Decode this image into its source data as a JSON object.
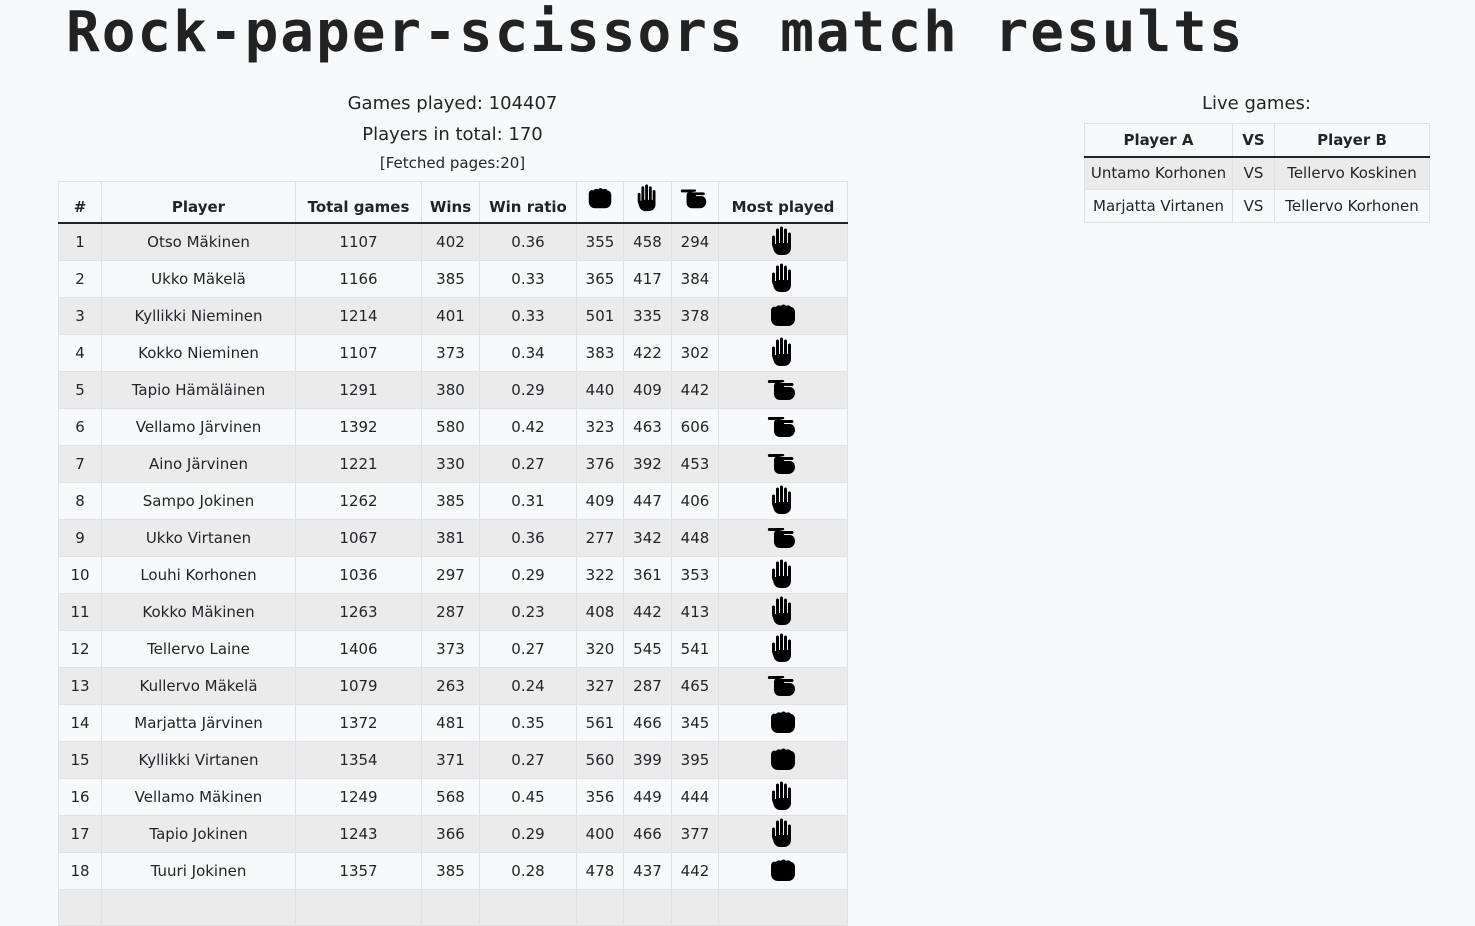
{
  "page": {
    "title": "Rock-paper-scissors match results"
  },
  "stats": {
    "games_played": "Games played: 104407",
    "players_total": "Players in total: 170",
    "fetched_pages": "[Fetched pages:20]"
  },
  "results_table": {
    "headers": {
      "rank": "#",
      "player": "Player",
      "total_games": "Total games",
      "wins": "Wins",
      "win_ratio": "Win ratio",
      "rock_icon": "rock-icon",
      "paper_icon": "paper-icon",
      "scissors_icon": "scissors-icon",
      "most_played": "Most played"
    },
    "rows": [
      {
        "rank": "1",
        "player": "Otso Mäkinen",
        "total": "1107",
        "wins": "402",
        "ratio": "0.36",
        "rock": "355",
        "paper": "458",
        "scissors": "294",
        "most": "paper"
      },
      {
        "rank": "2",
        "player": "Ukko Mäkelä",
        "total": "1166",
        "wins": "385",
        "ratio": "0.33",
        "rock": "365",
        "paper": "417",
        "scissors": "384",
        "most": "paper"
      },
      {
        "rank": "3",
        "player": "Kyllikki Nieminen",
        "total": "1214",
        "wins": "401",
        "ratio": "0.33",
        "rock": "501",
        "paper": "335",
        "scissors": "378",
        "most": "rock"
      },
      {
        "rank": "4",
        "player": "Kokko Nieminen",
        "total": "1107",
        "wins": "373",
        "ratio": "0.34",
        "rock": "383",
        "paper": "422",
        "scissors": "302",
        "most": "paper"
      },
      {
        "rank": "5",
        "player": "Tapio Hämäläinen",
        "total": "1291",
        "wins": "380",
        "ratio": "0.29",
        "rock": "440",
        "paper": "409",
        "scissors": "442",
        "most": "scissors"
      },
      {
        "rank": "6",
        "player": "Vellamo Järvinen",
        "total": "1392",
        "wins": "580",
        "ratio": "0.42",
        "rock": "323",
        "paper": "463",
        "scissors": "606",
        "most": "scissors"
      },
      {
        "rank": "7",
        "player": "Aino Järvinen",
        "total": "1221",
        "wins": "330",
        "ratio": "0.27",
        "rock": "376",
        "paper": "392",
        "scissors": "453",
        "most": "scissors"
      },
      {
        "rank": "8",
        "player": "Sampo Jokinen",
        "total": "1262",
        "wins": "385",
        "ratio": "0.31",
        "rock": "409",
        "paper": "447",
        "scissors": "406",
        "most": "paper"
      },
      {
        "rank": "9",
        "player": "Ukko Virtanen",
        "total": "1067",
        "wins": "381",
        "ratio": "0.36",
        "rock": "277",
        "paper": "342",
        "scissors": "448",
        "most": "scissors"
      },
      {
        "rank": "10",
        "player": "Louhi Korhonen",
        "total": "1036",
        "wins": "297",
        "ratio": "0.29",
        "rock": "322",
        "paper": "361",
        "scissors": "353",
        "most": "paper"
      },
      {
        "rank": "11",
        "player": "Kokko Mäkinen",
        "total": "1263",
        "wins": "287",
        "ratio": "0.23",
        "rock": "408",
        "paper": "442",
        "scissors": "413",
        "most": "paper"
      },
      {
        "rank": "12",
        "player": "Tellervo Laine",
        "total": "1406",
        "wins": "373",
        "ratio": "0.27",
        "rock": "320",
        "paper": "545",
        "scissors": "541",
        "most": "paper"
      },
      {
        "rank": "13",
        "player": "Kullervo Mäkelä",
        "total": "1079",
        "wins": "263",
        "ratio": "0.24",
        "rock": "327",
        "paper": "287",
        "scissors": "465",
        "most": "scissors"
      },
      {
        "rank": "14",
        "player": "Marjatta Järvinen",
        "total": "1372",
        "wins": "481",
        "ratio": "0.35",
        "rock": "561",
        "paper": "466",
        "scissors": "345",
        "most": "rock"
      },
      {
        "rank": "15",
        "player": "Kyllikki Virtanen",
        "total": "1354",
        "wins": "371",
        "ratio": "0.27",
        "rock": "560",
        "paper": "399",
        "scissors": "395",
        "most": "rock"
      },
      {
        "rank": "16",
        "player": "Vellamo Mäkinen",
        "total": "1249",
        "wins": "568",
        "ratio": "0.45",
        "rock": "356",
        "paper": "449",
        "scissors": "444",
        "most": "paper"
      },
      {
        "rank": "17",
        "player": "Tapio Jokinen",
        "total": "1243",
        "wins": "366",
        "ratio": "0.29",
        "rock": "400",
        "paper": "466",
        "scissors": "377",
        "most": "paper"
      },
      {
        "rank": "18",
        "player": "Tuuri Jokinen",
        "total": "1357",
        "wins": "385",
        "ratio": "0.28",
        "rock": "478",
        "paper": "437",
        "scissors": "442",
        "most": "rock"
      },
      {
        "rank": "",
        "player": "",
        "total": "",
        "wins": "",
        "ratio": "",
        "rock": "",
        "paper": "",
        "scissors": "",
        "most": ""
      }
    ]
  },
  "live_games": {
    "title": "Live games:",
    "headers": {
      "player_a": "Player A",
      "vs": "VS",
      "player_b": "Player B"
    },
    "rows": [
      {
        "a": "Untamo Korhonen",
        "vs": "VS",
        "b": "Tellervo Koskinen"
      },
      {
        "a": "Marjatta Virtanen",
        "vs": "VS",
        "b": "Tellervo Korhonen"
      }
    ]
  },
  "colors": {
    "text": "#212529",
    "background": "#f8f9fa",
    "stripe": "#ebebeb",
    "border": "#dee2e6"
  }
}
